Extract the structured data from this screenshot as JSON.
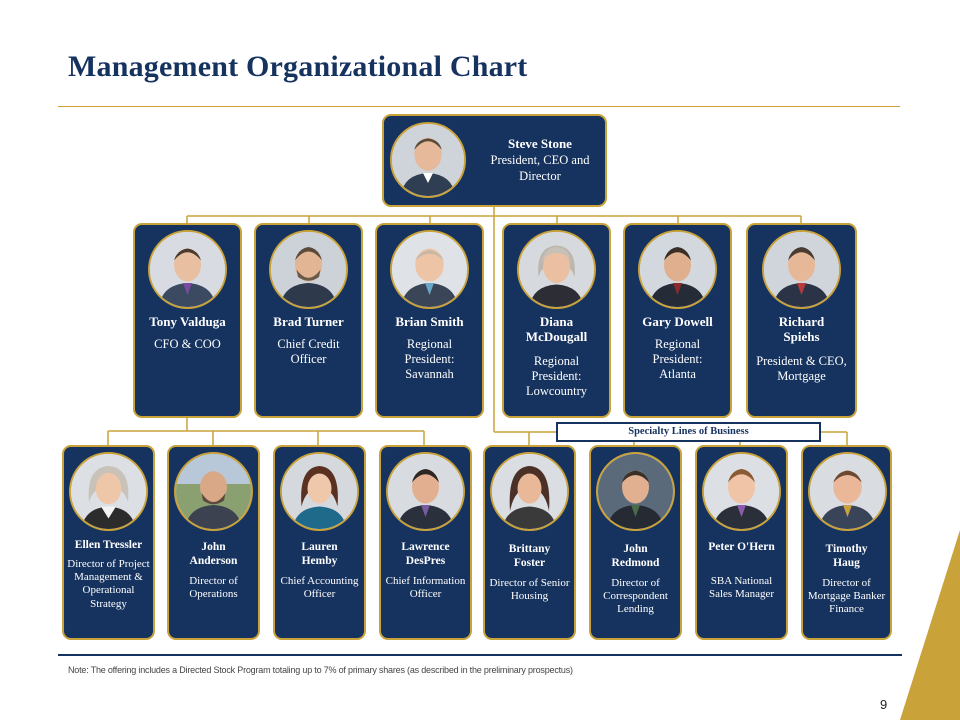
{
  "title": "Management Organizational Chart",
  "colors": {
    "navy": "#16335f",
    "gold": "#c9a23a"
  },
  "ceo": {
    "name": "Steve Stone",
    "role": "President, CEO and Director",
    "photo": "steve-stone-photo"
  },
  "executives": [
    {
      "name": "Tony Valduga",
      "role": "CFO & COO",
      "photo": "tony-valduga-photo"
    },
    {
      "name": "Brad Turner",
      "role": "Chief Credit Officer",
      "photo": "brad-turner-photo"
    },
    {
      "name": "Brian Smith",
      "role": "Regional President: Savannah",
      "photo": "brian-smith-photo"
    },
    {
      "name": "Diana McDougall",
      "role": "Regional President: Lowcountry",
      "photo": "diana-mcdougall-photo"
    },
    {
      "name": "Gary Dowell",
      "role": "Regional President: Atlanta",
      "photo": "gary-dowell-photo"
    },
    {
      "name": "Richard Spiehs",
      "role": "President & CEO, Mortgage",
      "photo": "richard-spiehs-photo"
    }
  ],
  "specialty_label": "Specialty Lines of Business",
  "directors": [
    {
      "name": "Ellen Tressler",
      "role": "Director of Project Management & Operational Strategy",
      "photo": "ellen-tressler-photo"
    },
    {
      "name": "John Anderson",
      "role": "Director of Operations",
      "photo": "john-anderson-photo"
    },
    {
      "name": "Lauren Hemby",
      "role": "Chief Accounting Officer",
      "photo": "lauren-hemby-photo"
    },
    {
      "name": "Lawrence DesPres",
      "role": "Chief Information Officer",
      "photo": "lawrence-despres-photo"
    },
    {
      "name": "Brittany Foster",
      "role": "Director of Senior Housing",
      "photo": "brittany-foster-photo"
    },
    {
      "name": "John Redmond",
      "role": "Director of Correspondent Lending",
      "photo": "john-redmond-photo"
    },
    {
      "name": "Peter O'Hern",
      "role": "SBA National Sales Manager",
      "photo": "peter-ohern-photo"
    },
    {
      "name": "Timothy Haug",
      "role": "Director of Mortgage Banker Finance",
      "photo": "timothy-haug-photo"
    }
  ],
  "note": "Note:  The offering includes a Directed Stock Program totaling up to 7% of primary shares (as described in the preliminary prospectus)",
  "page_number": "9"
}
